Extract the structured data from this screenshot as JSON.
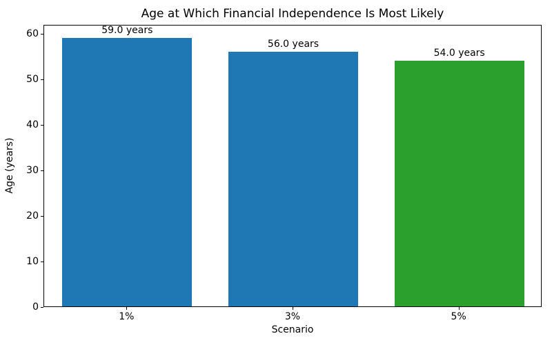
{
  "chart_data": {
    "type": "bar",
    "title": "Age at Which Financial Independence Is Most Likely",
    "xlabel": "Scenario",
    "ylabel": "Age (years)",
    "categories": [
      "1%",
      "3%",
      "5%"
    ],
    "values": [
      59.0,
      56.0,
      54.0
    ],
    "bar_labels": [
      "59.0 years",
      "56.0 years",
      "54.0 years"
    ],
    "bar_colors": [
      "#1f77b4",
      "#1f77b4",
      "#2ca02c"
    ],
    "yticks": [
      0,
      10,
      20,
      30,
      40,
      50,
      60
    ],
    "ylim": [
      0,
      62
    ],
    "bar_width_fraction": 0.78,
    "grid": false,
    "legend_position": "none",
    "spine_color": "#000000",
    "background_color": "#ffffff"
  }
}
